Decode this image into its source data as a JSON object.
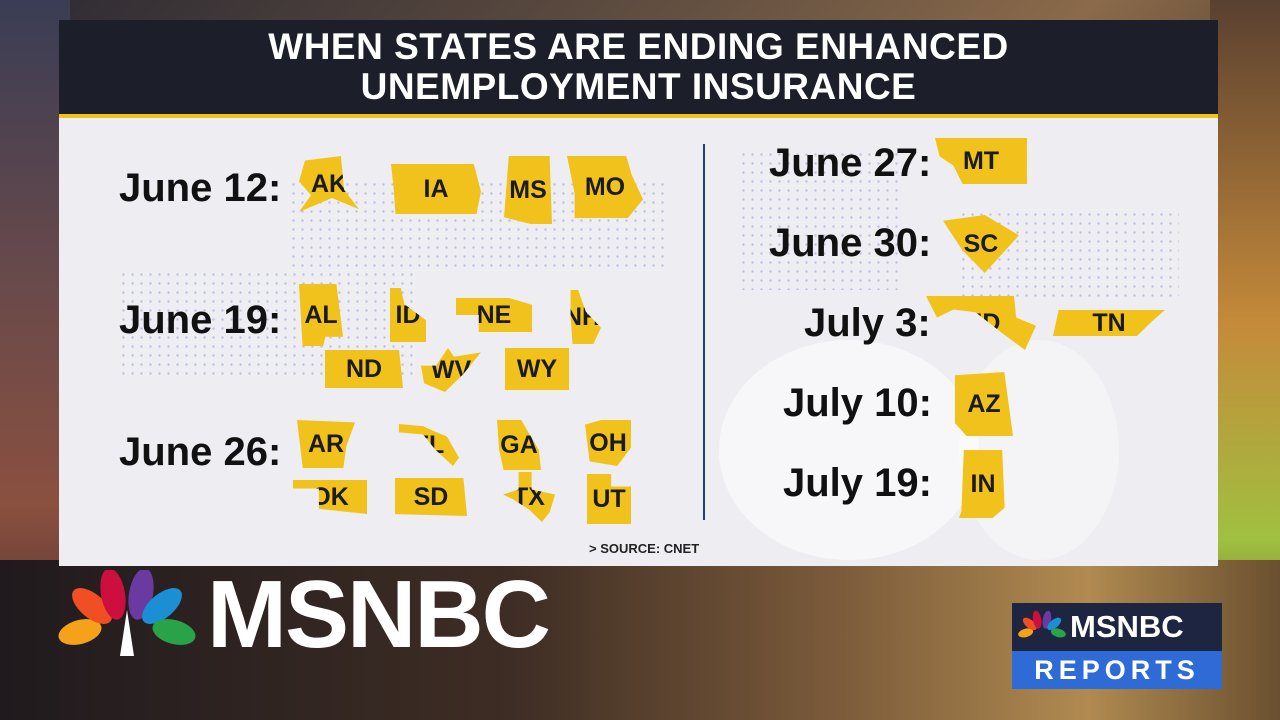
{
  "title_line1": "WHEN STATES ARE ENDING ENHANCED",
  "title_line2": "UNEMPLOYMENT INSURANCE",
  "source": "> SOURCE: CNET",
  "groups": [
    {
      "date": "June 12:",
      "states": [
        "AK",
        "IA",
        "MS",
        "MO"
      ]
    },
    {
      "date": "June 19:",
      "states": [
        "AL",
        "ID",
        "NE",
        "NH",
        "ND",
        "WV",
        "WY"
      ]
    },
    {
      "date": "June 26:",
      "states": [
        "AR",
        "FL",
        "GA",
        "OH",
        "OK",
        "SD",
        "TX",
        "UT"
      ]
    },
    {
      "date": "June 27:",
      "states": [
        "MT"
      ]
    },
    {
      "date": "June 30:",
      "states": [
        "SC"
      ]
    },
    {
      "date": "July 3:",
      "states": [
        "MD",
        "TN"
      ]
    },
    {
      "date": "July 10:",
      "states": [
        "AZ"
      ]
    },
    {
      "date": "July 19:",
      "states": [
        "IN"
      ]
    }
  ],
  "logo": "MSNBC",
  "badge": {
    "top": "MSNBC",
    "bottom": "REPORTS"
  },
  "colors": {
    "state_fill": "#f1c21b",
    "title_bg": "#1c1f2a",
    "accent": "#f1c21b",
    "badge_blue": "#2f6bd6"
  }
}
